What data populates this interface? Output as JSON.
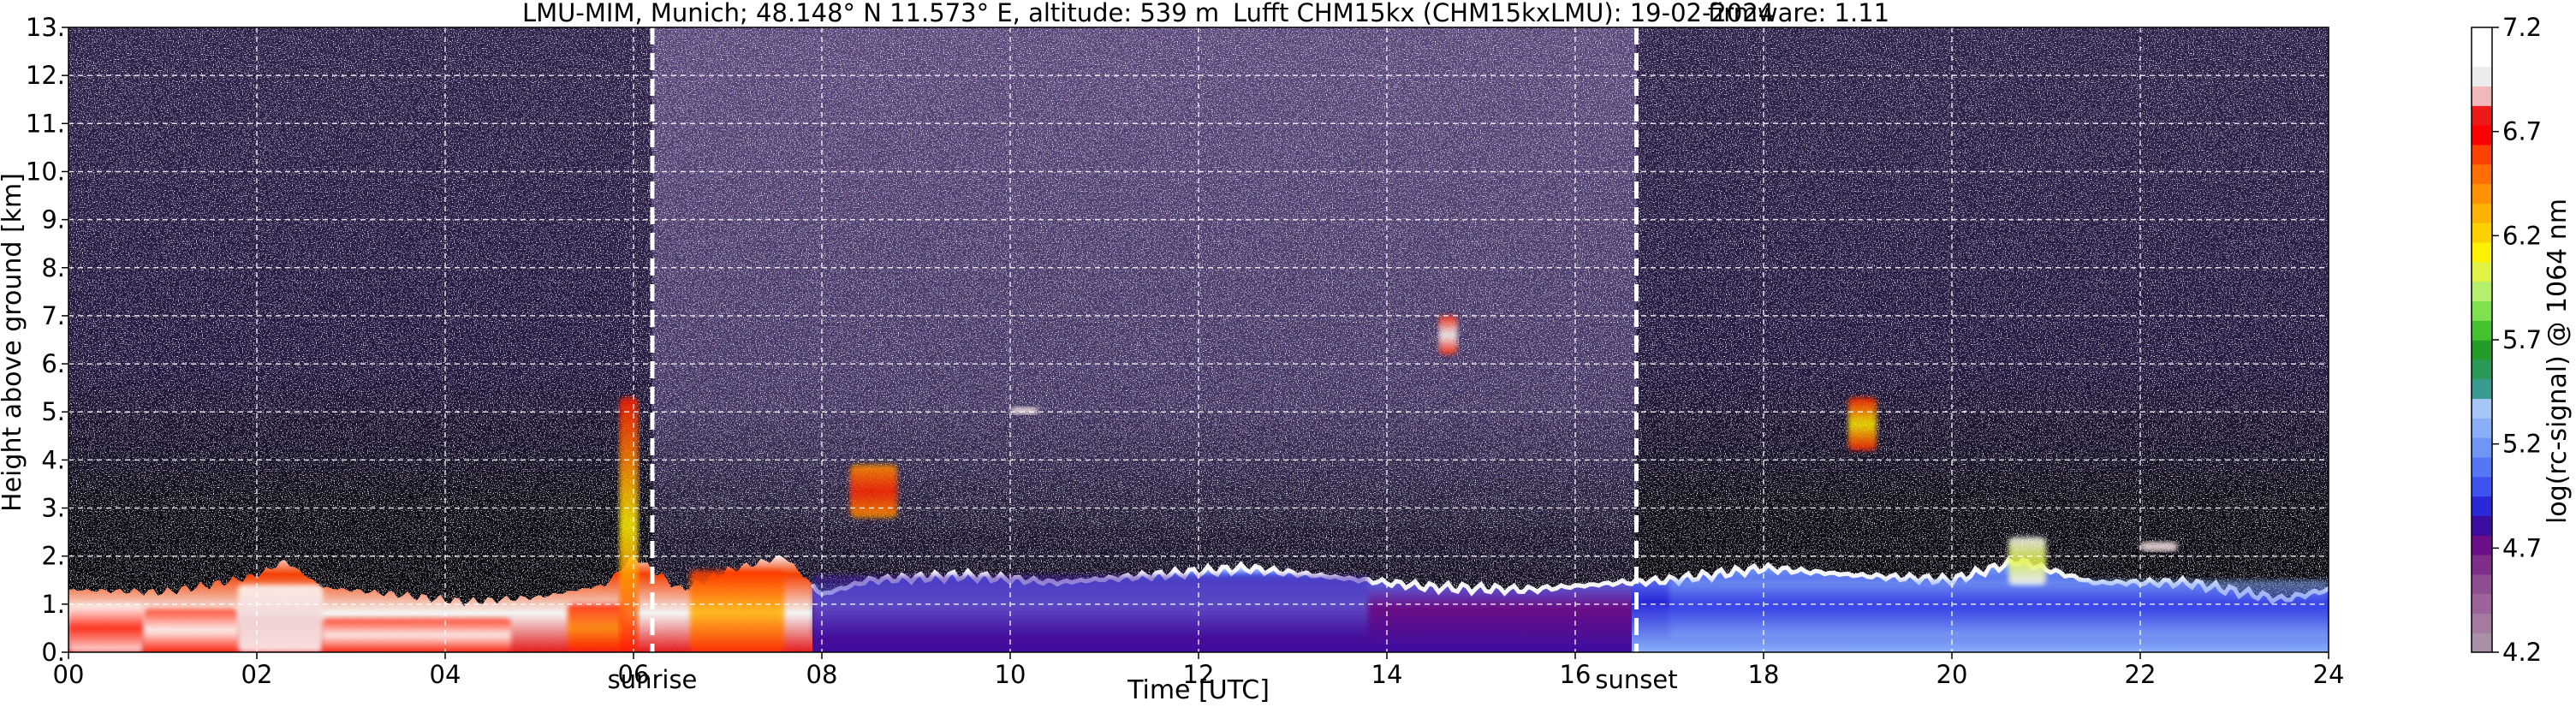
{
  "title": {
    "station": "LMU-MIM, Munich; 48.148° N 11.573° E, altitude: 539 m",
    "instrument": "Lufft CHM15kx (CHM15kxLMU): 19-02-2024",
    "firmware": "firmware: 1.11"
  },
  "chart_data": {
    "type": "heatmap",
    "xlabel": "Time [UTC]",
    "ylabel": "Height above ground [km]",
    "colorbar_label": "log(rc-signal) @ 1064 nm",
    "xlim": [
      0,
      24
    ],
    "ylim": [
      0,
      13
    ],
    "x_ticks": [
      0,
      2,
      4,
      6,
      8,
      10,
      12,
      14,
      16,
      18,
      20,
      22,
      24
    ],
    "x_tick_labels": [
      "00",
      "02",
      "04",
      "06",
      "08",
      "10",
      "12",
      "14",
      "16",
      "18",
      "20",
      "22",
      "24"
    ],
    "y_ticks": [
      0,
      1,
      2,
      3,
      4,
      5,
      6,
      7,
      8,
      9,
      10,
      11,
      12,
      13
    ],
    "y_tick_labels": [
      "0.",
      "1.",
      "2.",
      "3.",
      "4.",
      "5.",
      "6.",
      "7.",
      "8.",
      "9.",
      "10.",
      "11.",
      "12.",
      "13."
    ],
    "grid": true,
    "colorbar_range": [
      4.2,
      7.2
    ],
    "colorbar_ticks": [
      4.2,
      4.7,
      5.2,
      5.7,
      6.2,
      6.7,
      7.2
    ],
    "colorbar_tick_labels": [
      "4.2",
      "4.7",
      "5.2",
      "5.7",
      "6.2",
      "6.7",
      "7.2"
    ],
    "colorbar_colors": [
      "#a98fa8",
      "#a37aa0",
      "#9c6499",
      "#8f4e91",
      "#7f2f8a",
      "#6a0f85",
      "#3c0da0",
      "#2a28d8",
      "#3d52f0",
      "#5577f5",
      "#6f95f6",
      "#88aff8",
      "#a6c7f6",
      "#3a9b92",
      "#2a9a58",
      "#239c28",
      "#45c130",
      "#7fe14e",
      "#b4f06d",
      "#e0f243",
      "#fff200",
      "#ffd000",
      "#ffb200",
      "#ff9200",
      "#ff6e00",
      "#ff4200",
      "#ff0000",
      "#ee1a1a",
      "#f0b8b8",
      "#ececec",
      "#ffffff",
      "#ffffff"
    ],
    "annotations": [
      {
        "text": "sunrise",
        "x": 6.2
      },
      {
        "text": "sunset",
        "x": 16.65
      }
    ],
    "boundary_layer_top_km": [
      [
        0,
        1.3
      ],
      [
        1,
        1.25
      ],
      [
        1.5,
        1.4
      ],
      [
        2.0,
        1.6
      ],
      [
        2.3,
        1.9
      ],
      [
        2.7,
        1.35
      ],
      [
        3.5,
        1.2
      ],
      [
        4.2,
        1.05
      ],
      [
        5.0,
        1.15
      ],
      [
        5.7,
        1.4
      ],
      [
        6.0,
        2.0
      ],
      [
        6.5,
        1.3
      ],
      [
        7.0,
        1.7
      ],
      [
        7.6,
        2.0
      ],
      [
        8.0,
        1.2
      ],
      [
        8.5,
        1.5
      ],
      [
        9.5,
        1.6
      ],
      [
        10.5,
        1.45
      ],
      [
        11.5,
        1.6
      ],
      [
        12.5,
        1.75
      ],
      [
        13.5,
        1.55
      ],
      [
        14.5,
        1.35
      ],
      [
        15.5,
        1.3
      ],
      [
        16.5,
        1.45
      ],
      [
        17.0,
        1.5
      ],
      [
        18.0,
        1.75
      ],
      [
        19.0,
        1.6
      ],
      [
        20.0,
        1.5
      ],
      [
        20.7,
        1.9
      ],
      [
        21.5,
        1.45
      ],
      [
        22.5,
        1.45
      ],
      [
        23.5,
        1.1
      ],
      [
        24,
        1.3
      ]
    ],
    "aerosol_features": [
      {
        "x": [
          0.0,
          0.8
        ],
        "y": [
          0.0,
          1.0
        ],
        "level": "white-red"
      },
      {
        "x": [
          0.8,
          1.8
        ],
        "y": [
          0.0,
          0.9
        ],
        "level": "red-white"
      },
      {
        "x": [
          1.8,
          2.7
        ],
        "y": [
          0.0,
          1.4
        ],
        "level": "white"
      },
      {
        "x": [
          2.7,
          4.7
        ],
        "y": [
          0.0,
          0.7
        ],
        "level": "red-white"
      },
      {
        "x": [
          5.3,
          5.9
        ],
        "y": [
          0.0,
          1.0
        ],
        "level": "red"
      },
      {
        "x": [
          5.85,
          6.05
        ],
        "y": [
          0.0,
          5.3
        ],
        "level": "red-yellow"
      },
      {
        "x": [
          6.6,
          7.6
        ],
        "y": [
          0.0,
          1.7
        ],
        "level": "red-orange"
      },
      {
        "x": [
          8.3,
          8.8
        ],
        "y": [
          2.8,
          3.9
        ],
        "level": "orange-red"
      },
      {
        "x": [
          7.9,
          13.8
        ],
        "y": [
          0.3,
          1.6
        ],
        "level": "blue-purple"
      },
      {
        "x": [
          14.55,
          14.75
        ],
        "y": [
          6.2,
          7.0
        ],
        "level": "red-white"
      },
      {
        "x": [
          10.0,
          10.3
        ],
        "y": [
          4.95,
          5.1
        ],
        "level": "white"
      },
      {
        "x": [
          17.0,
          24.0
        ],
        "y": [
          0.3,
          1.5
        ],
        "level": "blue-white"
      },
      {
        "x": [
          18.9,
          19.2
        ],
        "y": [
          4.2,
          5.3
        ],
        "level": "red-yellow"
      },
      {
        "x": [
          20.6,
          21.0
        ],
        "y": [
          1.4,
          2.4
        ],
        "level": "white-yellow"
      },
      {
        "x": [
          22.0,
          22.4
        ],
        "y": [
          2.1,
          2.3
        ],
        "level": "white"
      }
    ]
  }
}
